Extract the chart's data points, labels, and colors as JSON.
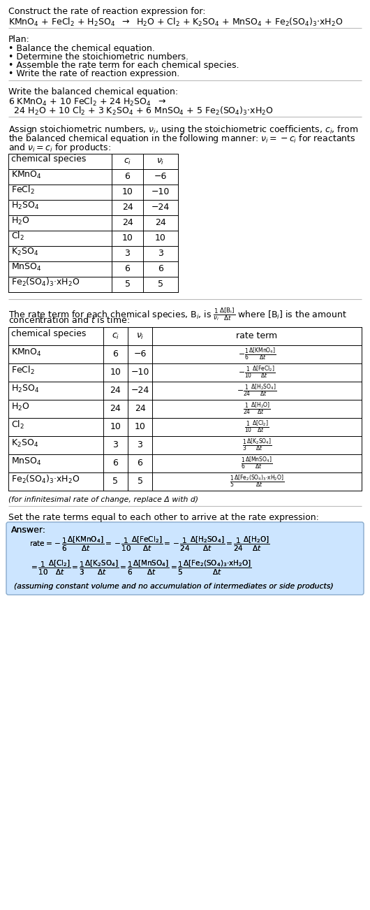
{
  "bg_color": "#ffffff",
  "answer_bg": "#cce5ff",
  "title_text": "Construct the rate of reaction expression for:",
  "plan_header": "Plan:",
  "plan_items": [
    "• Balance the chemical equation.",
    "• Determine the stoichiometric numbers.",
    "• Assemble the rate term for each chemical species.",
    "• Write the rate of reaction expression."
  ],
  "balanced_header": "Write the balanced chemical equation:",
  "stoich_para_lines": [
    "Assign stoichiometric numbers, $\\nu_i$, using the stoichiometric coefficients, $c_i$, from",
    "the balanced chemical equation in the following manner: $\\nu_i = -c_i$ for reactants",
    "and $\\nu_i = c_i$ for products:"
  ],
  "table1_headers": [
    "chemical species",
    "$c_i$",
    "$\\nu_i$"
  ],
  "table1_data": [
    [
      "KMnO$_4$",
      "6",
      "−6"
    ],
    [
      "FeCl$_2$",
      "10",
      "−10"
    ],
    [
      "H$_2$SO$_4$",
      "24",
      "−24"
    ],
    [
      "H$_2$O",
      "24",
      "24"
    ],
    [
      "Cl$_2$",
      "10",
      "10"
    ],
    [
      "K$_2$SO$_4$",
      "3",
      "3"
    ],
    [
      "MnSO$_4$",
      "6",
      "6"
    ],
    [
      "Fe$_2$(SO$_4$)$_3$·xH$_2$O",
      "5",
      "5"
    ]
  ],
  "rate_intro_lines": [
    "The rate term for each chemical species, B$_i$, is $\\frac{1}{\\nu_i}\\frac{\\Delta[\\mathrm{B_i}]}{\\Delta t}$ where [B$_i$] is the amount",
    "concentration and $t$ is time:"
  ],
  "table2_headers": [
    "chemical species",
    "$c_i$",
    "$\\nu_i$",
    "rate term"
  ],
  "table2_data": [
    [
      "KMnO$_4$",
      "6",
      "−6",
      "$-\\frac{1}{6}\\frac{\\Delta[\\mathrm{KMnO_4}]}{\\Delta t}$"
    ],
    [
      "FeCl$_2$",
      "10",
      "−10",
      "$-\\frac{1}{10}\\frac{\\Delta[\\mathrm{FeCl_2}]}{\\Delta t}$"
    ],
    [
      "H$_2$SO$_4$",
      "24",
      "−24",
      "$-\\frac{1}{24}\\frac{\\Delta[\\mathrm{H_2SO_4}]}{\\Delta t}$"
    ],
    [
      "H$_2$O",
      "24",
      "24",
      "$\\frac{1}{24}\\frac{\\Delta[\\mathrm{H_2O}]}{\\Delta t}$"
    ],
    [
      "Cl$_2$",
      "10",
      "10",
      "$\\frac{1}{10}\\frac{\\Delta[\\mathrm{Cl_2}]}{\\Delta t}$"
    ],
    [
      "K$_2$SO$_4$",
      "3",
      "3",
      "$\\frac{1}{3}\\frac{\\Delta[\\mathrm{K_2SO_4}]}{\\Delta t}$"
    ],
    [
      "MnSO$_4$",
      "6",
      "6",
      "$\\frac{1}{6}\\frac{\\Delta[\\mathrm{MnSO_4}]}{\\Delta t}$"
    ],
    [
      "Fe$_2$(SO$_4$)$_3$·xH$_2$O",
      "5",
      "5",
      "$\\frac{1}{5}\\frac{\\Delta[\\mathrm{Fe_2(SO_4)_3{\\cdot}xH_2O}]}{\\Delta t}$"
    ]
  ],
  "infinitesimal_note": "(for infinitesimal rate of change, replace Δ with d)",
  "set_rate_text": "Set the rate terms equal to each other to arrive at the rate expression:",
  "answer_label": "Answer:",
  "answer_note": "(assuming constant volume and no accumulation of intermediates or side products)"
}
